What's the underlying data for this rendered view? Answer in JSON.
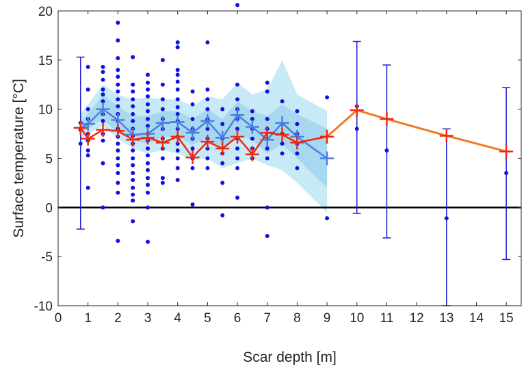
{
  "chart_data": {
    "type": "scatter",
    "xlabel": "Scar depth [m]",
    "ylabel": "Surface temperature [°C]",
    "xlim": [
      0,
      15.5
    ],
    "ylim": [
      -10,
      20
    ],
    "xticks": [
      "0",
      "1",
      "2",
      "3",
      "4",
      "5",
      "6",
      "7",
      "8",
      "9",
      "10",
      "11",
      "12",
      "13",
      "14",
      "15"
    ],
    "yticks": [
      "-10",
      "-5",
      "0",
      "5",
      "10",
      "15",
      "20"
    ],
    "grid": false,
    "zero_line": 0,
    "colors": {
      "points": "#1010e0",
      "error_bars": "#1c1cd8",
      "blue_line": "#4a7ee0",
      "band_outer": "#c8e9f6",
      "band_inner": "#a8d8f0",
      "red_line": "#ee2a10",
      "orange_line": "#f07a20",
      "zero_line": "#000000"
    },
    "scatter_points": [
      [
        0.75,
        6.5
      ],
      [
        0.75,
        7.9
      ],
      [
        0.75,
        8.6
      ],
      [
        1.0,
        14.3
      ],
      [
        1.0,
        12.0
      ],
      [
        1.0,
        10.0
      ],
      [
        1.0,
        9.0
      ],
      [
        1.0,
        7.5
      ],
      [
        1.0,
        6.8
      ],
      [
        1.0,
        5.8
      ],
      [
        1.0,
        5.3
      ],
      [
        1.0,
        2.0
      ],
      [
        1.5,
        14.3
      ],
      [
        1.5,
        13.8
      ],
      [
        1.5,
        13.0
      ],
      [
        1.5,
        12.0
      ],
      [
        1.5,
        11.5
      ],
      [
        1.5,
        10.8
      ],
      [
        1.5,
        9.5
      ],
      [
        1.5,
        8.8
      ],
      [
        1.5,
        7.5
      ],
      [
        1.5,
        6.8
      ],
      [
        1.5,
        4.5
      ],
      [
        1.5,
        0.0
      ],
      [
        2.0,
        18.8
      ],
      [
        2.0,
        17.0
      ],
      [
        2.0,
        15.2
      ],
      [
        2.0,
        14.0
      ],
      [
        2.0,
        13.3
      ],
      [
        2.0,
        12.5
      ],
      [
        2.0,
        11.8
      ],
      [
        2.0,
        11.0
      ],
      [
        2.0,
        10.3
      ],
      [
        2.0,
        9.5
      ],
      [
        2.0,
        8.8
      ],
      [
        2.0,
        8.0
      ],
      [
        2.0,
        7.2
      ],
      [
        2.0,
        6.5
      ],
      [
        2.0,
        5.8
      ],
      [
        2.0,
        5.0
      ],
      [
        2.0,
        4.3
      ],
      [
        2.0,
        3.5
      ],
      [
        2.0,
        2.5
      ],
      [
        2.0,
        1.5
      ],
      [
        2.0,
        -3.4
      ],
      [
        2.5,
        15.3
      ],
      [
        2.5,
        12.5
      ],
      [
        2.5,
        11.8
      ],
      [
        2.5,
        11.0
      ],
      [
        2.5,
        10.3
      ],
      [
        2.5,
        9.5
      ],
      [
        2.5,
        8.8
      ],
      [
        2.5,
        8.0
      ],
      [
        2.5,
        7.3
      ],
      [
        2.5,
        6.5
      ],
      [
        2.5,
        5.8
      ],
      [
        2.5,
        5.0
      ],
      [
        2.5,
        4.3
      ],
      [
        2.5,
        3.5
      ],
      [
        2.5,
        2.8
      ],
      [
        2.5,
        2.0
      ],
      [
        2.5,
        1.3
      ],
      [
        2.5,
        0.7
      ],
      [
        2.5,
        -1.4
      ],
      [
        3.0,
        13.5
      ],
      [
        3.0,
        12.7
      ],
      [
        3.0,
        12.0
      ],
      [
        3.0,
        11.3
      ],
      [
        3.0,
        10.5
      ],
      [
        3.0,
        9.8
      ],
      [
        3.0,
        9.0
      ],
      [
        3.0,
        8.3
      ],
      [
        3.0,
        7.5
      ],
      [
        3.0,
        6.8
      ],
      [
        3.0,
        6.0
      ],
      [
        3.0,
        5.3
      ],
      [
        3.0,
        4.5
      ],
      [
        3.0,
        3.8
      ],
      [
        3.0,
        3.0
      ],
      [
        3.0,
        2.3
      ],
      [
        3.0,
        1.5
      ],
      [
        3.0,
        0.0
      ],
      [
        3.0,
        -3.5
      ],
      [
        3.5,
        15.0
      ],
      [
        3.5,
        12.5
      ],
      [
        3.5,
        11.0
      ],
      [
        3.5,
        10.0
      ],
      [
        3.5,
        9.0
      ],
      [
        3.5,
        8.0
      ],
      [
        3.5,
        7.0
      ],
      [
        3.5,
        6.0
      ],
      [
        3.5,
        5.0
      ],
      [
        3.5,
        3.0
      ],
      [
        3.5,
        2.5
      ],
      [
        4.0,
        16.8
      ],
      [
        4.0,
        16.3
      ],
      [
        4.0,
        14.0
      ],
      [
        4.0,
        13.5
      ],
      [
        4.0,
        12.8
      ],
      [
        4.0,
        12.0
      ],
      [
        4.0,
        11.0
      ],
      [
        4.0,
        10.2
      ],
      [
        4.0,
        9.5
      ],
      [
        4.0,
        8.8
      ],
      [
        4.0,
        8.0
      ],
      [
        4.0,
        7.2
      ],
      [
        4.0,
        6.5
      ],
      [
        4.0,
        5.8
      ],
      [
        4.0,
        5.0
      ],
      [
        4.0,
        4.0
      ],
      [
        4.0,
        2.8
      ],
      [
        4.5,
        11.8
      ],
      [
        4.5,
        10.5
      ],
      [
        4.5,
        9.0
      ],
      [
        4.5,
        8.0
      ],
      [
        4.5,
        7.0
      ],
      [
        4.5,
        6.0
      ],
      [
        4.5,
        5.0
      ],
      [
        4.5,
        4.0
      ],
      [
        4.5,
        0.3
      ],
      [
        5.0,
        16.8
      ],
      [
        5.0,
        12.0
      ],
      [
        5.0,
        11.0
      ],
      [
        5.0,
        10.0
      ],
      [
        5.0,
        9.0
      ],
      [
        5.0,
        8.0
      ],
      [
        5.0,
        7.0
      ],
      [
        5.0,
        6.0
      ],
      [
        5.0,
        5.0
      ],
      [
        5.0,
        4.0
      ],
      [
        5.5,
        10.0
      ],
      [
        5.5,
        8.5
      ],
      [
        5.5,
        7.0
      ],
      [
        5.5,
        5.5
      ],
      [
        5.5,
        4.5
      ],
      [
        5.5,
        2.5
      ],
      [
        5.5,
        -0.8
      ],
      [
        6.0,
        20.6
      ],
      [
        6.0,
        12.5
      ],
      [
        6.0,
        11.0
      ],
      [
        6.0,
        10.0
      ],
      [
        6.0,
        9.0
      ],
      [
        6.0,
        8.0
      ],
      [
        6.0,
        7.0
      ],
      [
        6.0,
        6.0
      ],
      [
        6.0,
        5.0
      ],
      [
        6.0,
        4.0
      ],
      [
        6.0,
        1.0
      ],
      [
        6.5,
        9.8
      ],
      [
        6.5,
        9.0
      ],
      [
        6.5,
        8.0
      ],
      [
        6.5,
        7.0
      ],
      [
        6.5,
        6.0
      ],
      [
        6.5,
        5.0
      ],
      [
        7.0,
        12.7
      ],
      [
        7.0,
        11.8
      ],
      [
        7.0,
        9.0
      ],
      [
        7.0,
        8.0
      ],
      [
        7.0,
        7.0
      ],
      [
        7.0,
        6.0
      ],
      [
        7.0,
        5.0
      ],
      [
        7.0,
        0.0
      ],
      [
        7.0,
        -2.9
      ],
      [
        7.5,
        10.8
      ],
      [
        7.5,
        8.5
      ],
      [
        7.5,
        7.5
      ],
      [
        7.5,
        6.5
      ],
      [
        7.5,
        5.5
      ],
      [
        8.0,
        9.8
      ],
      [
        8.0,
        8.5
      ],
      [
        8.0,
        7.5
      ],
      [
        8.0,
        6.5
      ],
      [
        8.0,
        5.5
      ],
      [
        8.0,
        4.0
      ],
      [
        9.0,
        11.2
      ],
      [
        9.0,
        -1.1
      ],
      [
        10.0,
        10.3
      ],
      [
        10.0,
        8.0
      ],
      [
        11.0,
        5.8
      ],
      [
        13.0,
        -1.1
      ],
      [
        15.0,
        3.5
      ]
    ],
    "blue_series": {
      "x": [
        0.75,
        1.0,
        1.5,
        2.0,
        2.5,
        3.0,
        3.5,
        4.0,
        4.5,
        5.0,
        5.5,
        6.0,
        6.5,
        7.0,
        7.5,
        8.0,
        9.0
      ],
      "y": [
        8.1,
        8.5,
        10.0,
        8.9,
        7.4,
        7.5,
        8.6,
        8.7,
        7.6,
        8.8,
        7.1,
        9.4,
        8.2,
        6.9,
        8.6,
        7.2,
        5.0
      ],
      "band_outer_upper": [
        9.5,
        10.5,
        12.5,
        11.5,
        11.0,
        11.2,
        11.0,
        11.0,
        10.3,
        11.3,
        11.0,
        12.7,
        11.5,
        12.0,
        15.0,
        11.5,
        9.8
      ],
      "band_outer_lower": [
        7.0,
        7.5,
        8.3,
        7.0,
        6.0,
        5.5,
        5.8,
        5.5,
        4.8,
        5.0,
        4.0,
        4.5,
        5.0,
        4.3,
        3.8,
        2.5,
        -0.5
      ],
      "band_inner_upper": [
        8.8,
        9.5,
        11.5,
        10.3,
        9.3,
        9.3,
        9.8,
        9.8,
        9.0,
        10.0,
        9.0,
        10.8,
        9.8,
        9.3,
        10.5,
        9.5,
        8.0
      ],
      "band_inner_lower": [
        7.6,
        8.0,
        9.0,
        7.6,
        6.8,
        6.5,
        7.2,
        7.2,
        6.4,
        7.0,
        5.8,
        7.5,
        6.8,
        5.5,
        6.5,
        5.0,
        2.0
      ]
    },
    "red_series": {
      "x": [
        0.75,
        1.0,
        1.5,
        2.0,
        2.5,
        3.0,
        3.5,
        4.0,
        4.5,
        5.0,
        5.5,
        6.0,
        6.5,
        7.0,
        7.5,
        8.0,
        9.0
      ],
      "y": [
        8.1,
        7.0,
        7.9,
        7.8,
        6.9,
        7.1,
        6.6,
        7.2,
        5.1,
        6.7,
        6.0,
        7.2,
        5.4,
        7.6,
        7.4,
        6.6,
        7.2
      ]
    },
    "orange_series": {
      "x": [
        9.0,
        10.0,
        11.0,
        13.0,
        15.0
      ],
      "y": [
        7.2,
        9.9,
        9.0,
        7.3,
        5.7
      ]
    },
    "error_bars": [
      {
        "x": 0.75,
        "lower": -2.2,
        "upper": 15.3
      },
      {
        "x": 10.0,
        "lower": -0.6,
        "upper": 16.9
      },
      {
        "x": 11.0,
        "lower": -3.1,
        "upper": 14.5
      },
      {
        "x": 13.0,
        "lower": -10.0,
        "upper": 8.0
      },
      {
        "x": 15.0,
        "lower": -5.3,
        "upper": 12.2
      }
    ]
  }
}
